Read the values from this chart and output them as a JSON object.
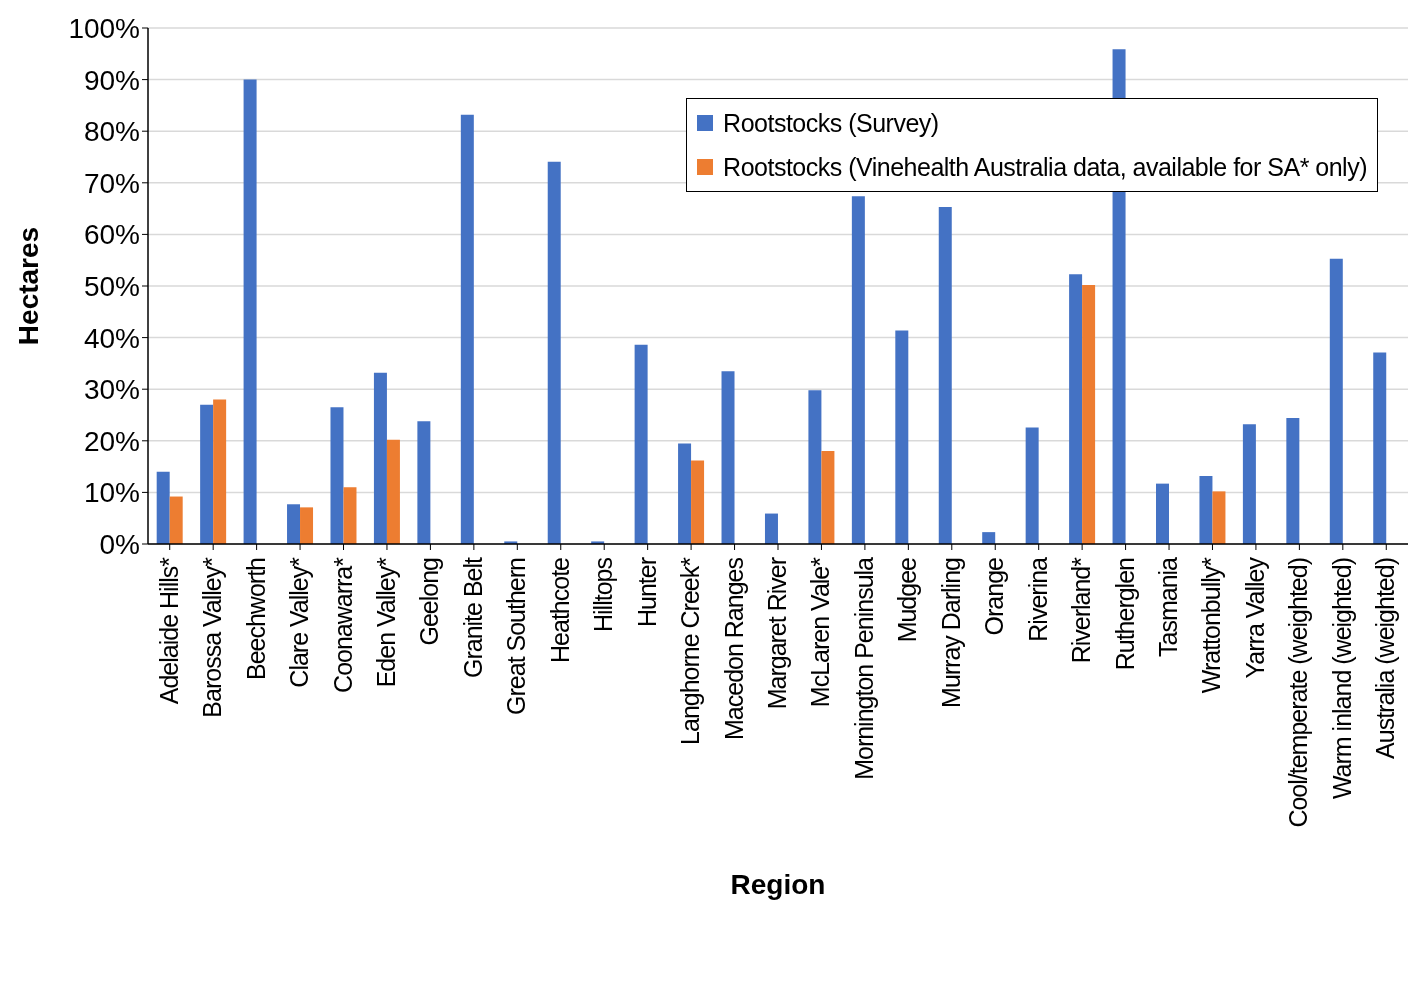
{
  "chart_data": {
    "type": "bar",
    "xlabel": "Region",
    "ylabel": "Hectares",
    "categories": [
      "Adelaide Hills*",
      "Barossa Valley*",
      "Beechworth",
      "Clare Valley*",
      "Coonawarra*",
      "Eden Valley*",
      "Geelong",
      "Granite Belt",
      "Great Southern",
      "Heathcote",
      "Hilltops",
      "Hunter",
      "Langhorne Creek*",
      "Macedon Ranges",
      "Margaret River",
      "McLaren Vale*",
      "Mornington Peninsula",
      "Mudgee",
      "Murray Darling",
      "Orange",
      "Riverina",
      "Riverland*",
      "Rutherglen",
      "Tasmania",
      "Wrattonbully*",
      "Yarra Valley",
      "Cool/temperate (weighted)",
      "Warm inland (weighted)",
      "Australia (weighted)"
    ],
    "series": [
      {
        "name": "Rootstocks (Survey)",
        "color": "#4472c4",
        "values": [
          14,
          27,
          90,
          7.7,
          26.5,
          33.2,
          23.8,
          83.2,
          0.5,
          74.1,
          0.5,
          38.6,
          19.5,
          33.5,
          5.9,
          29.8,
          67.4,
          41.4,
          65.3,
          2.3,
          22.6,
          52.3,
          95.9,
          11.7,
          13.2,
          23.2,
          24.4,
          55.3,
          37.1
        ]
      },
      {
        "name": "Rootstocks (Vinehealth Australia data, available for SA* only)",
        "color": "#ed7d31",
        "values": [
          9.2,
          28,
          null,
          7.1,
          11,
          20.2,
          null,
          null,
          null,
          null,
          null,
          null,
          16.2,
          null,
          null,
          18,
          null,
          null,
          null,
          null,
          null,
          50.2,
          null,
          null,
          10.2,
          null,
          null,
          null,
          null
        ]
      }
    ],
    "ylim": [
      0,
      100
    ],
    "yticks": [
      {
        "value": 0,
        "label": "0%"
      },
      {
        "value": 10,
        "label": "10%"
      },
      {
        "value": 20,
        "label": "20%"
      },
      {
        "value": 30,
        "label": "30%"
      },
      {
        "value": 40,
        "label": "40%"
      },
      {
        "value": 50,
        "label": "50%"
      },
      {
        "value": 60,
        "label": "60%"
      },
      {
        "value": 70,
        "label": "70%"
      },
      {
        "value": 80,
        "label": "80%"
      },
      {
        "value": 90,
        "label": "90%"
      },
      {
        "value": 100,
        "label": "100%"
      }
    ],
    "grid": "y",
    "legend": "top right"
  }
}
